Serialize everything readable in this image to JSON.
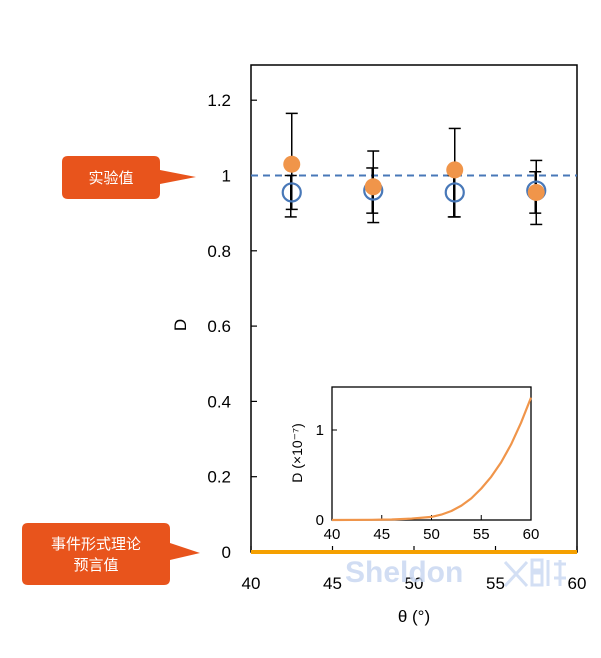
{
  "chart_data": [
    {
      "type": "scatter",
      "xlabel": "θ (°)",
      "ylabel": "D",
      "xlim": [
        40,
        60
      ],
      "ylim": [
        0,
        1.3
      ],
      "x_ticks": [
        "40",
        "45",
        "50",
        "55",
        "60"
      ],
      "y_ticks": [
        "0",
        "0.2",
        "0.4",
        "0.6",
        "0.8",
        "1",
        "1.2"
      ],
      "grid": false,
      "series": [
        {
          "marker": "filled-circle",
          "color": "#F0954A",
          "points": [
            {
              "x": 42.5,
              "y": 1.03,
              "err_low": 0.91,
              "err_high": 1.165
            },
            {
              "x": 47.5,
              "y": 0.97,
              "err_low": 0.875,
              "err_high": 1.065
            },
            {
              "x": 52.5,
              "y": 1.015,
              "err_low": 0.89,
              "err_high": 1.125
            },
            {
              "x": 57.5,
              "y": 0.955,
              "err_low": 0.87,
              "err_high": 1.04
            }
          ]
        },
        {
          "marker": "open-circle",
          "color": "#4878B8",
          "points": [
            {
              "x": 42.5,
              "y": 0.955,
              "err_low": 0.89,
              "err_high": 1.0
            },
            {
              "x": 47.5,
              "y": 0.96,
              "err_low": 0.9,
              "err_high": 1.02
            },
            {
              "x": 52.5,
              "y": 0.955,
              "err_low": 0.89,
              "err_high": 1.0
            },
            {
              "x": 57.5,
              "y": 0.96,
              "err_low": 0.9,
              "err_high": 1.01
            }
          ]
        }
      ],
      "reference_lines": [
        {
          "y": 1,
          "style": "dashed",
          "color": "#4878B8"
        },
        {
          "y": 0,
          "style": "solid",
          "color": "#F5A000"
        }
      ],
      "annotations": [
        {
          "text": "实验值",
          "points_to_y": 1
        },
        {
          "text_lines": [
            "事件形式理论",
            "预言值"
          ],
          "points_to_y": 0
        }
      ]
    },
    {
      "type": "line",
      "inset": true,
      "xlabel": "",
      "ylabel": "D (×10⁻⁷)",
      "xlim": [
        40,
        60
      ],
      "ylim": [
        0,
        1.5
      ],
      "x_ticks": [
        "40",
        "45",
        "50",
        "55",
        "60"
      ],
      "y_ticks": [
        "0",
        "1"
      ],
      "series": [
        {
          "color": "#F0954A",
          "x": [
            40,
            44,
            46,
            48,
            50,
            51,
            52,
            53,
            54,
            55,
            56,
            57,
            58,
            59,
            60
          ],
          "y": [
            0,
            0.002,
            0.006,
            0.015,
            0.035,
            0.06,
            0.1,
            0.16,
            0.24,
            0.35,
            0.48,
            0.64,
            0.84,
            1.08,
            1.36
          ]
        }
      ]
    }
  ],
  "callouts": {
    "experimental": "实验值",
    "theory_line1": "事件形式理论",
    "theory_line2": "预言值"
  },
  "watermark": "Sheldon",
  "colors": {
    "callout_fill": "#E8541C",
    "orange_marker": "#F0954A",
    "blue_marker": "#4878B8",
    "zero_line": "#F5A000"
  }
}
